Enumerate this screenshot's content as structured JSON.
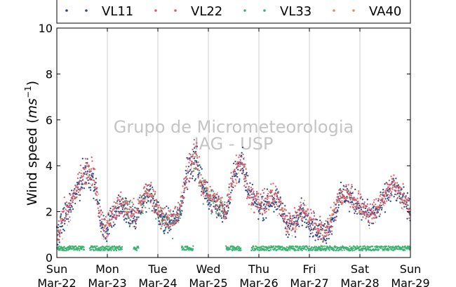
{
  "chart_data": {
    "type": "scatter",
    "title": "",
    "ylabel_main": "Wind speed (",
    "ylabel_unit": "ms",
    "ylabel_exp": "−1",
    "ylabel_close": ")",
    "xlabel": "",
    "ylim": [
      0,
      10
    ],
    "xlim": [
      0,
      7
    ],
    "yticks": [
      0,
      2,
      4,
      6,
      8,
      10
    ],
    "xticks": [
      {
        "day": "Sun",
        "date": "Mar-22"
      },
      {
        "day": "Mon",
        "date": "Mar-23"
      },
      {
        "day": "Tue",
        "date": "Mar-24"
      },
      {
        "day": "Wed",
        "date": "Mar-25"
      },
      {
        "day": "Thu",
        "date": "Mar-26"
      },
      {
        "day": "Fri",
        "date": "Mar-27"
      },
      {
        "day": "Sat",
        "date": "Mar-28"
      },
      {
        "day": "Sun",
        "date": "Mar-29"
      }
    ],
    "grid": "vertical",
    "legend_position": "top",
    "watermark_line1": "Grupo de Micrometeorologia",
    "watermark_line2": "IAG - USP",
    "series": [
      {
        "name": "VL11",
        "color": "#2b4a8a"
      },
      {
        "name": "VL22",
        "color": "#d9606a"
      },
      {
        "name": "VL33",
        "color": "#3cb371"
      },
      {
        "name": "VA40",
        "color": "#e88a5a"
      }
    ],
    "trend_days": [
      0,
      0.15,
      0.3,
      0.45,
      0.6,
      0.75,
      0.9,
      1.0,
      1.1,
      1.25,
      1.4,
      1.55,
      1.7,
      1.85,
      2.0,
      2.15,
      2.3,
      2.45,
      2.6,
      2.75,
      2.9,
      3.05,
      3.2,
      3.35,
      3.5,
      3.65,
      3.8,
      3.95,
      4.1,
      4.25,
      4.4,
      4.55,
      4.7,
      4.85,
      5.0,
      5.15,
      5.3,
      5.45,
      5.6,
      5.75,
      5.9,
      6.05,
      6.2,
      6.35,
      6.5,
      6.65,
      6.8,
      6.95,
      7.0
    ],
    "trend_speed": [
      0.8,
      1.8,
      2.3,
      3.2,
      3.8,
      3.3,
      1.2,
      1.3,
      1.9,
      2.2,
      2.0,
      1.7,
      2.5,
      2.8,
      1.9,
      1.6,
      1.5,
      2.0,
      4.0,
      4.2,
      3.0,
      2.5,
      2.2,
      2.0,
      3.5,
      4.2,
      2.8,
      2.3,
      2.2,
      2.6,
      2.4,
      1.5,
      1.4,
      2.0,
      1.6,
      1.2,
      1.0,
      1.6,
      2.6,
      2.7,
      2.4,
      2.1,
      1.8,
      2.0,
      2.7,
      3.1,
      2.7,
      2.2,
      2.0
    ],
    "vl33_calm_periods": [
      [
        0.0,
        0.55
      ],
      [
        0.65,
        1.3
      ],
      [
        1.52,
        1.62
      ],
      [
        2.47,
        2.7
      ],
      [
        3.35,
        3.65
      ],
      [
        3.85,
        7.0
      ]
    ],
    "vl33_calm_level": 0.28
  }
}
